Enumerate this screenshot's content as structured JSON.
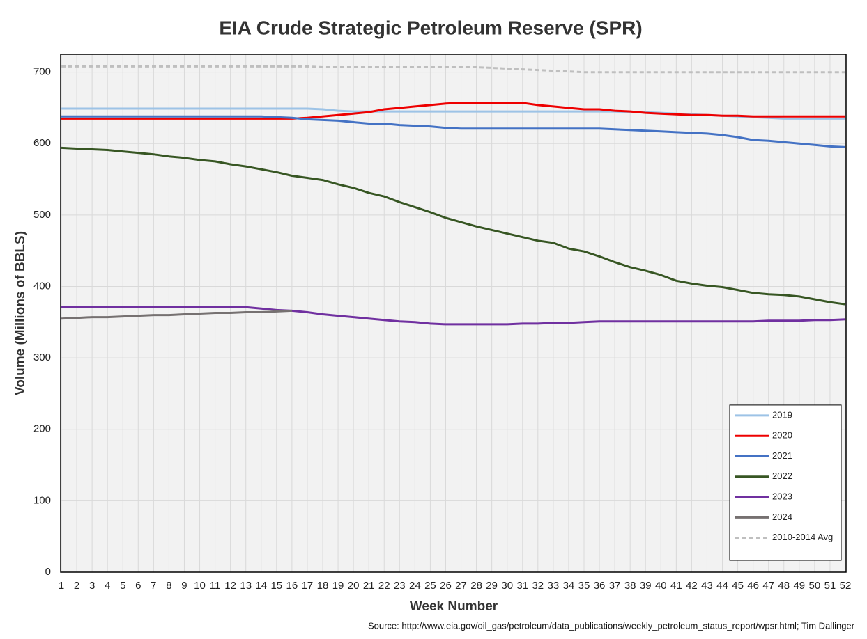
{
  "chart_data": {
    "type": "line",
    "title": "EIA Crude Strategic Petroleum Reserve (SPR)",
    "x_label": "Week Number",
    "y_label": "Volume (Millions of BBLS)",
    "source": "Source: http://www.eia.gov/oil_gas/petroleum/data_publications/weekly_petroleum_status_report/wpsr.html; Tim Dallinger",
    "x": [
      1,
      2,
      3,
      4,
      5,
      6,
      7,
      8,
      9,
      10,
      11,
      12,
      13,
      14,
      15,
      16,
      17,
      18,
      19,
      20,
      21,
      22,
      23,
      24,
      25,
      26,
      27,
      28,
      29,
      30,
      31,
      32,
      33,
      34,
      35,
      36,
      37,
      38,
      39,
      40,
      41,
      42,
      43,
      44,
      45,
      46,
      47,
      48,
      49,
      50,
      51,
      52
    ],
    "xlim": [
      1,
      52
    ],
    "xticks": [
      1,
      2,
      3,
      4,
      5,
      6,
      7,
      8,
      9,
      10,
      11,
      12,
      13,
      14,
      15,
      16,
      17,
      18,
      19,
      20,
      21,
      22,
      23,
      24,
      25,
      26,
      27,
      28,
      29,
      30,
      31,
      32,
      33,
      34,
      35,
      36,
      37,
      38,
      39,
      40,
      41,
      42,
      43,
      44,
      45,
      46,
      47,
      48,
      49,
      50,
      51,
      52
    ],
    "ylim": [
      0,
      725
    ],
    "yticks": [
      0,
      100,
      200,
      300,
      400,
      500,
      600,
      700
    ],
    "grid": true,
    "legend": "bottom-right",
    "series": [
      {
        "name": "2019",
        "color": "#9dc3e6",
        "values": [
          649,
          649,
          649,
          649,
          649,
          649,
          649,
          649,
          649,
          649,
          649,
          649,
          649,
          649,
          649,
          649,
          649,
          648,
          646,
          645,
          645,
          645,
          645,
          645,
          645,
          645,
          645,
          645,
          645,
          645,
          645,
          645,
          645,
          645,
          645,
          645,
          645,
          644,
          644,
          643,
          642,
          641,
          640,
          639,
          638,
          637,
          636,
          635,
          635,
          635,
          635,
          635
        ]
      },
      {
        "name": "2020",
        "color": "#ee0000",
        "values": [
          635,
          635,
          635,
          635,
          635,
          635,
          635,
          635,
          635,
          635,
          635,
          635,
          635,
          635,
          635,
          635,
          636,
          638,
          640,
          642,
          644,
          648,
          650,
          652,
          654,
          656,
          657,
          657,
          657,
          657,
          657,
          654,
          652,
          650,
          648,
          648,
          646,
          645,
          643,
          642,
          641,
          640,
          640,
          639,
          639,
          638,
          638,
          638,
          638,
          638,
          638,
          638
        ]
      },
      {
        "name": "2021",
        "color": "#4472c4",
        "values": [
          638,
          638,
          638,
          638,
          638,
          638,
          638,
          638,
          638,
          638,
          638,
          638,
          638,
          638,
          637,
          636,
          634,
          633,
          632,
          630,
          628,
          628,
          626,
          625,
          624,
          622,
          621,
          621,
          621,
          621,
          621,
          621,
          621,
          621,
          621,
          621,
          620,
          619,
          618,
          617,
          616,
          615,
          614,
          612,
          609,
          605,
          604,
          602,
          600,
          598,
          596,
          595
        ]
      },
      {
        "name": "2022",
        "color": "#375623",
        "values": [
          594,
          593,
          592,
          591,
          589,
          587,
          585,
          582,
          580,
          577,
          575,
          571,
          568,
          564,
          560,
          555,
          552,
          549,
          543,
          538,
          531,
          526,
          518,
          511,
          504,
          496,
          490,
          484,
          479,
          474,
          469,
          464,
          461,
          453,
          449,
          442,
          434,
          427,
          422,
          416,
          408,
          404,
          401,
          399,
          395,
          391,
          389,
          388,
          386,
          382,
          378,
          375
        ]
      },
      {
        "name": "2023",
        "color": "#7030a0",
        "values": [
          371,
          371,
          371,
          371,
          371,
          371,
          371,
          371,
          371,
          371,
          371,
          371,
          371,
          369,
          367,
          366,
          364,
          361,
          359,
          357,
          355,
          353,
          351,
          350,
          348,
          347,
          347,
          347,
          347,
          347,
          348,
          348,
          349,
          349,
          350,
          351,
          351,
          351,
          351,
          351,
          351,
          351,
          351,
          351,
          351,
          351,
          352,
          352,
          352,
          353,
          353,
          354
        ]
      },
      {
        "name": "2024",
        "color": "#767171",
        "values": [
          355,
          356,
          357,
          357,
          358,
          359,
          360,
          360,
          361,
          362,
          363,
          363,
          364,
          364,
          365,
          366,
          null,
          null,
          null,
          null,
          null,
          null,
          null,
          null,
          null,
          null,
          null,
          null,
          null,
          null,
          null,
          null,
          null,
          null,
          null,
          null,
          null,
          null,
          null,
          null,
          null,
          null,
          null,
          null,
          null,
          null,
          null,
          null,
          null,
          null,
          null,
          null
        ]
      },
      {
        "name": "2010-2014 Avg",
        "color": "#bfbfbf",
        "style": "dashed",
        "values": [
          708,
          708,
          708,
          708,
          708,
          708,
          708,
          708,
          708,
          708,
          708,
          708,
          708,
          708,
          708,
          708,
          708,
          707,
          707,
          707,
          707,
          707,
          707,
          707,
          707,
          707,
          707,
          707,
          706,
          705,
          704,
          703,
          702,
          701,
          700,
          700,
          700,
          700,
          700,
          700,
          700,
          700,
          700,
          700,
          700,
          700,
          700,
          700,
          700,
          700,
          700,
          700
        ]
      }
    ]
  }
}
